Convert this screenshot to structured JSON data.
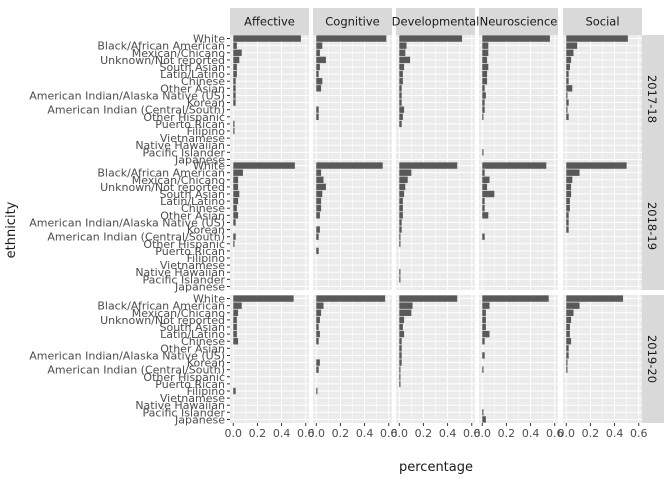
{
  "chart_data": {
    "type": "bar",
    "orientation": "horizontal",
    "faceted": true,
    "xlabel": "percentage",
    "ylabel": "ethnicity",
    "xlim": [
      0,
      0.6
    ],
    "xticks": [
      0.0,
      0.2,
      0.4,
      0.6
    ],
    "xtick_labels": [
      "0.0",
      "0.2",
      "0.4",
      "0.6"
    ],
    "grid": true,
    "bar_color": "#595959",
    "panel_background": "#ebebeb",
    "strip_background": "#d9d9d9",
    "columns": [
      "Affective",
      "Cognitive",
      "Developmental",
      "Neuroscience",
      "Social"
    ],
    "rows": [
      "2017-18",
      "2018-19",
      "2019-20"
    ],
    "categories": [
      "White",
      "Black/African American",
      "Mexican/Chicano",
      "Unknown/Not reported",
      "South Asian",
      "Latin/Latino",
      "Chinese",
      "Other Asian",
      "American Indian/Alaska Native (US)",
      "Korean",
      "American Indian (Central/South)",
      "Other Hispanic",
      "Puerto Rican",
      "Filipino",
      "Vietnamese",
      "Native Hawaiian",
      "Pacific Islander",
      "Japanese"
    ],
    "panels": [
      {
        "row": "2017-18",
        "column": "Affective",
        "values": [
          0.56,
          0.03,
          0.07,
          0.05,
          0.03,
          0.03,
          0.02,
          0.02,
          0.02,
          0.02,
          0.0,
          0.0,
          0.01,
          0.01,
          0.0,
          0.0,
          0.0,
          0.0
        ]
      },
      {
        "row": "2017-18",
        "column": "Cognitive",
        "values": [
          0.58,
          0.05,
          0.03,
          0.08,
          0.03,
          0.02,
          0.05,
          0.04,
          0.0,
          0.0,
          0.02,
          0.02,
          0.0,
          0.0,
          0.0,
          0.0,
          0.0,
          0.0
        ]
      },
      {
        "row": "2017-18",
        "column": "Developmental",
        "values": [
          0.52,
          0.06,
          0.05,
          0.09,
          0.04,
          0.03,
          0.03,
          0.02,
          0.02,
          0.02,
          0.04,
          0.03,
          0.02,
          0.0,
          0.0,
          0.0,
          0.0,
          0.0
        ]
      },
      {
        "row": "2017-18",
        "column": "Neuroscience",
        "values": [
          0.56,
          0.05,
          0.05,
          0.04,
          0.05,
          0.04,
          0.04,
          0.02,
          0.03,
          0.02,
          0.02,
          0.01,
          0.0,
          0.0,
          0.0,
          0.0,
          0.01,
          0.0
        ]
      },
      {
        "row": "2017-18",
        "column": "Social",
        "values": [
          0.51,
          0.09,
          0.06,
          0.04,
          0.03,
          0.02,
          0.02,
          0.05,
          0.01,
          0.02,
          0.01,
          0.02,
          0.0,
          0.0,
          0.0,
          0.0,
          0.0,
          0.0
        ]
      },
      {
        "row": "2018-19",
        "column": "Affective",
        "values": [
          0.51,
          0.08,
          0.04,
          0.04,
          0.05,
          0.04,
          0.03,
          0.04,
          0.02,
          0.0,
          0.02,
          0.01,
          0.0,
          0.0,
          0.0,
          0.0,
          0.0,
          0.0
        ]
      },
      {
        "row": "2018-19",
        "column": "Cognitive",
        "values": [
          0.55,
          0.04,
          0.06,
          0.08,
          0.05,
          0.04,
          0.04,
          0.03,
          0.0,
          0.03,
          0.02,
          0.0,
          0.02,
          0.0,
          0.0,
          0.0,
          0.0,
          0.0
        ]
      },
      {
        "row": "2018-19",
        "column": "Developmental",
        "values": [
          0.48,
          0.1,
          0.07,
          0.05,
          0.04,
          0.03,
          0.03,
          0.03,
          0.02,
          0.02,
          0.01,
          0.01,
          0.0,
          0.0,
          0.0,
          0.01,
          0.01,
          0.0
        ]
      },
      {
        "row": "2018-19",
        "column": "Neuroscience",
        "values": [
          0.53,
          0.02,
          0.06,
          0.04,
          0.1,
          0.02,
          0.02,
          0.05,
          0.0,
          0.0,
          0.02,
          0.0,
          0.0,
          0.0,
          0.0,
          0.0,
          0.0,
          0.0
        ]
      },
      {
        "row": "2018-19",
        "column": "Social",
        "values": [
          0.5,
          0.11,
          0.05,
          0.04,
          0.04,
          0.03,
          0.03,
          0.02,
          0.02,
          0.02,
          0.0,
          0.0,
          0.0,
          0.0,
          0.0,
          0.0,
          0.0,
          0.0
        ]
      },
      {
        "row": "2019-20",
        "column": "Affective",
        "values": [
          0.5,
          0.07,
          0.04,
          0.03,
          0.03,
          0.03,
          0.04,
          0.0,
          0.0,
          0.0,
          0.0,
          0.0,
          0.0,
          0.02,
          0.0,
          0.0,
          0.0,
          0.0
        ]
      },
      {
        "row": "2019-20",
        "column": "Cognitive",
        "values": [
          0.57,
          0.06,
          0.04,
          0.03,
          0.02,
          0.03,
          0.02,
          0.0,
          0.0,
          0.03,
          0.02,
          0.0,
          0.0,
          0.01,
          0.0,
          0.0,
          0.0,
          0.0
        ]
      },
      {
        "row": "2019-20",
        "column": "Developmental",
        "values": [
          0.48,
          0.11,
          0.1,
          0.04,
          0.03,
          0.04,
          0.02,
          0.02,
          0.02,
          0.02,
          0.01,
          0.01,
          0.01,
          0.0,
          0.0,
          0.0,
          0.0,
          0.0
        ]
      },
      {
        "row": "2019-20",
        "column": "Neuroscience",
        "values": [
          0.55,
          0.06,
          0.03,
          0.03,
          0.03,
          0.06,
          0.02,
          0.0,
          0.02,
          0.0,
          0.01,
          0.0,
          0.0,
          0.0,
          0.0,
          0.0,
          0.01,
          0.03
        ]
      },
      {
        "row": "2019-20",
        "column": "Social",
        "values": [
          0.47,
          0.11,
          0.06,
          0.04,
          0.03,
          0.03,
          0.04,
          0.02,
          0.02,
          0.01,
          0.01,
          0.0,
          0.0,
          0.0,
          0.0,
          0.0,
          0.0,
          0.0
        ]
      }
    ]
  }
}
